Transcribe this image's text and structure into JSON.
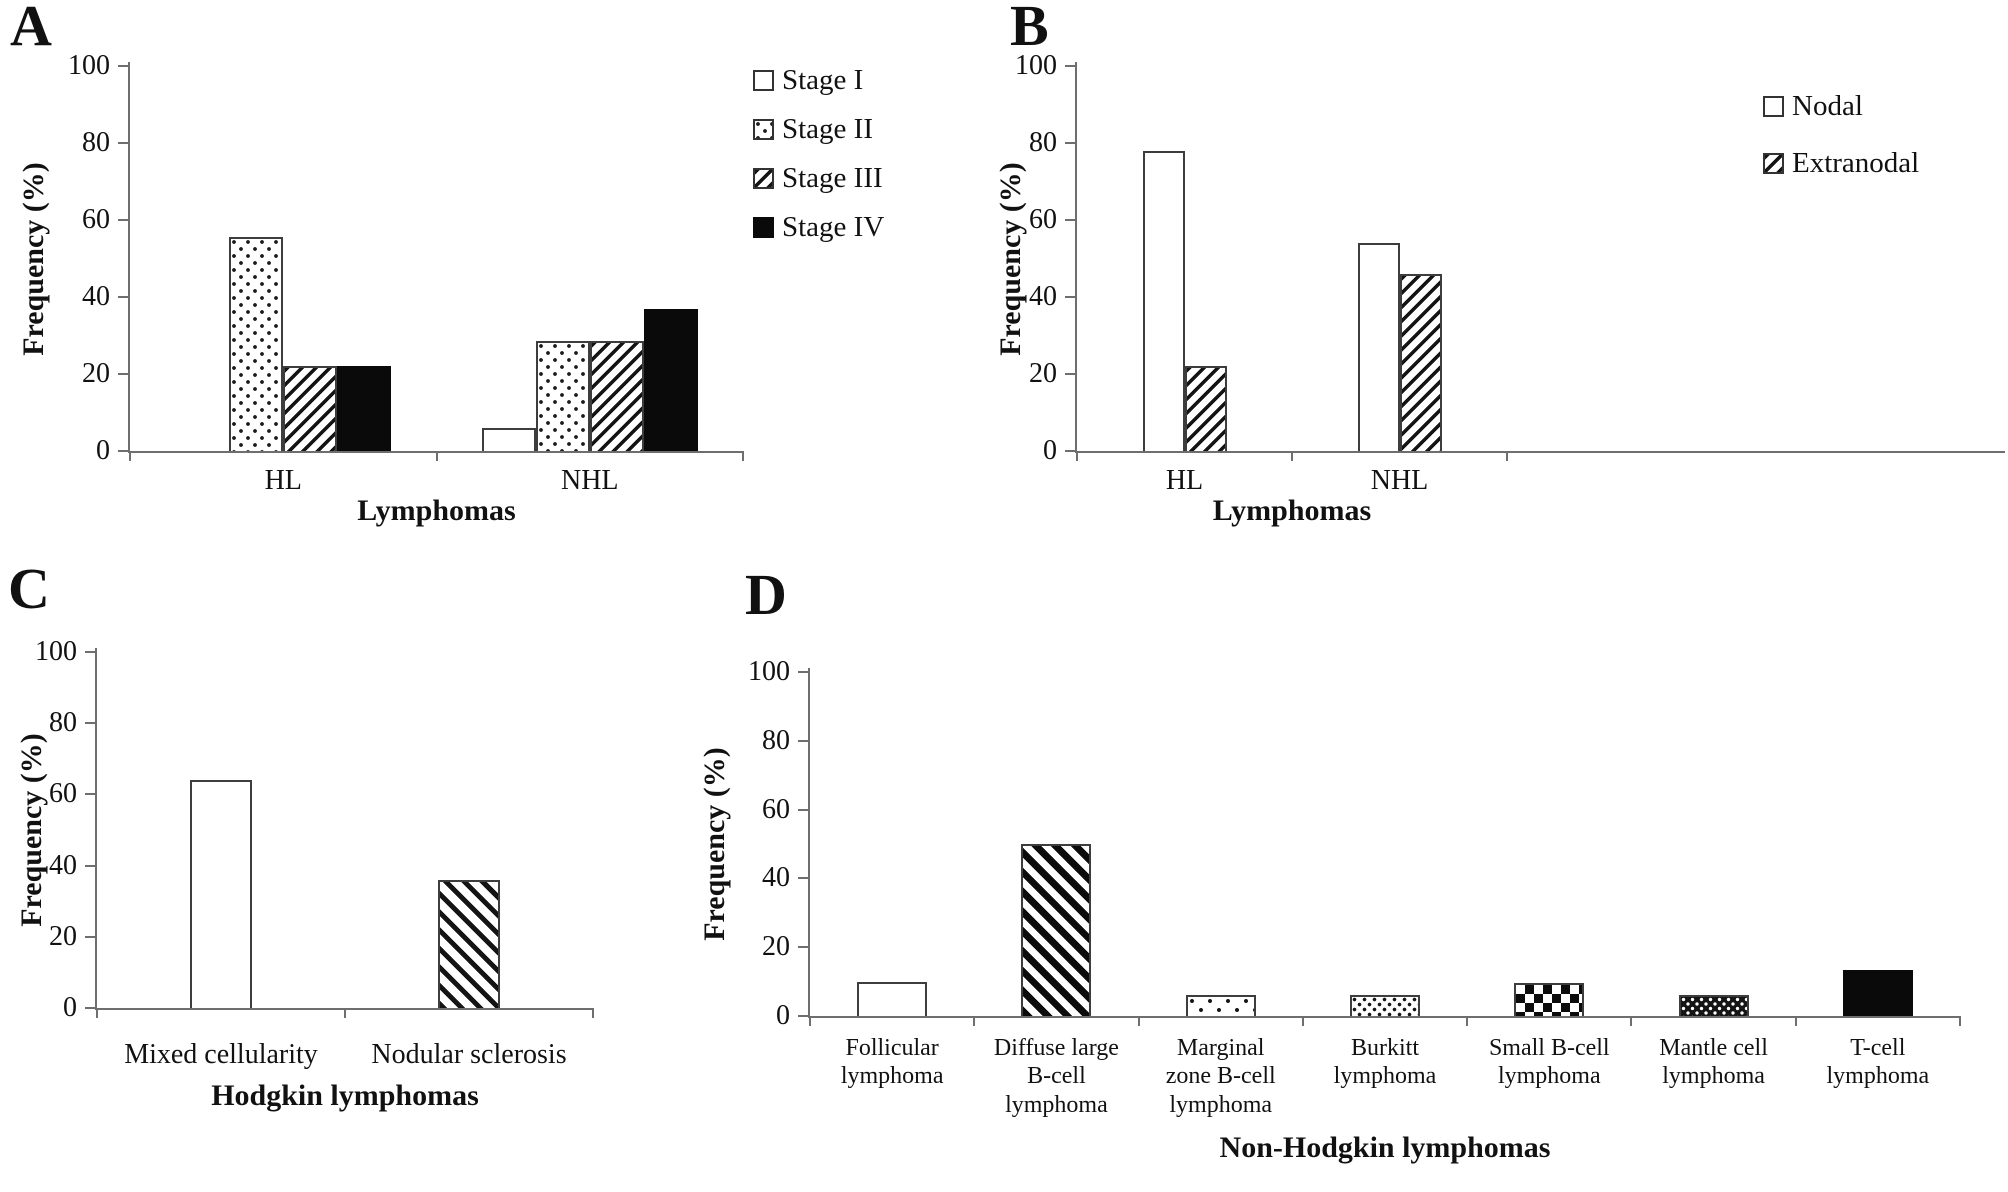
{
  "figure": {
    "background": "#ffffff",
    "ink_color": "#1a1a1a",
    "axis_color": "#6e6e6e",
    "bar_stroke": "#3d3d3d"
  },
  "chart_data": [
    {
      "id": "A",
      "type": "bar",
      "title": "",
      "categories": [
        "HL",
        "NHL"
      ],
      "series": [
        {
          "name": "Stage I",
          "pattern": "plain",
          "values": [
            0,
            6
          ]
        },
        {
          "name": "Stage II",
          "pattern": "dots",
          "values": [
            55.5,
            28.5
          ]
        },
        {
          "name": "Stage III",
          "pattern": "hatch",
          "values": [
            22,
            28.5
          ]
        },
        {
          "name": "Stage IV",
          "pattern": "solid",
          "values": [
            22,
            37
          ]
        }
      ],
      "xlabel": "Lymphomas",
      "ylabel": "Frequency (%)",
      "ylim": [
        0,
        100
      ],
      "yticks": [
        0,
        20,
        40,
        60,
        80,
        100
      ],
      "grid": false,
      "legend_position": "upper-right-inside"
    },
    {
      "id": "B",
      "type": "bar",
      "title": "",
      "categories": [
        "HL",
        "NHL"
      ],
      "series": [
        {
          "name": "Nodal",
          "pattern": "plain",
          "values": [
            78,
            54
          ]
        },
        {
          "name": "Extranodal",
          "pattern": "hatch",
          "values": [
            22,
            46
          ]
        }
      ],
      "xlabel": "Lymphomas",
      "ylabel": "Frequency (%)",
      "ylim": [
        0,
        100
      ],
      "yticks": [
        0,
        20,
        40,
        60,
        80,
        100
      ],
      "grid": false,
      "legend_position": "upper-right-inside"
    },
    {
      "id": "C",
      "type": "bar",
      "title": "",
      "categories": [
        "Mixed cellularity",
        "Nodular sclerosis"
      ],
      "values": [
        64,
        36
      ],
      "patterns": [
        "plain",
        "hatch2"
      ],
      "xlabel": "Hodgkin lymphomas",
      "ylabel": "Frequency (%)",
      "ylim": [
        0,
        100
      ],
      "yticks": [
        0,
        20,
        40,
        60,
        80,
        100
      ],
      "grid": false,
      "legend_position": "none"
    },
    {
      "id": "D",
      "type": "bar",
      "title": "",
      "categories": [
        "Follicular\nlymphoma",
        "Diffuse large\nB-cell\nlymphoma",
        "Marginal\nzone B-cell\nlymphoma",
        "Burkitt\nlymphoma",
        "Small B-cell\nlymphoma",
        "Mantle cell\nlymphoma",
        "T-cell\nlymphoma"
      ],
      "values": [
        10,
        50,
        6,
        6,
        9.5,
        6,
        13.5
      ],
      "patterns": [
        "plain",
        "hatch3",
        "dots-sparse",
        "dots-med",
        "checker",
        "dots-dark",
        "solid"
      ],
      "xlabel": "Non-Hodgkin lymphomas",
      "ylabel": "Frequency (%)",
      "ylim": [
        0,
        100
      ],
      "yticks": [
        0,
        20,
        40,
        60,
        80,
        100
      ],
      "grid": false,
      "legend_position": "none"
    }
  ]
}
